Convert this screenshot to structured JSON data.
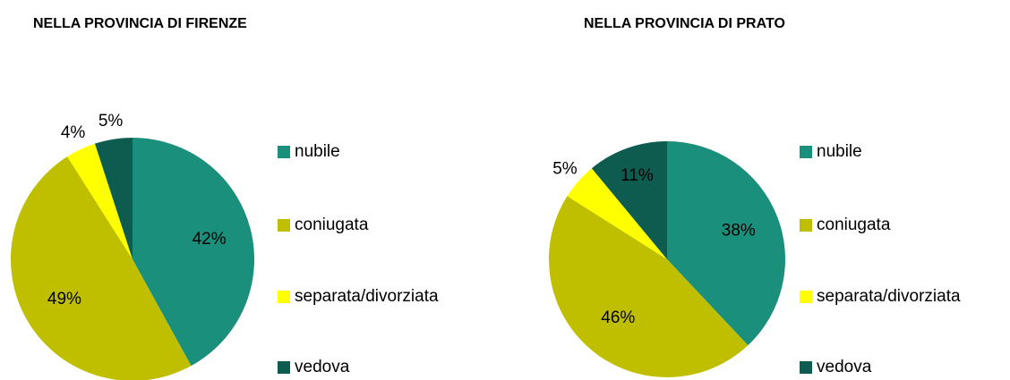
{
  "chart_data": [
    {
      "type": "pie",
      "title": "NELLA PROVINCIA DI FIRENZE",
      "categories": [
        "nubile",
        "coniugata",
        "separata/divorziata",
        "vedova"
      ],
      "values": [
        42,
        49,
        4,
        5
      ],
      "value_labels": [
        "42%",
        "49%",
        "4%",
        "5%"
      ],
      "colors": [
        "#1a8f7c",
        "#bfbf00",
        "#ffff00",
        "#0e5c50"
      ],
      "legend": "right"
    },
    {
      "type": "pie",
      "title": "NELLA PROVINCIA DI PRATO",
      "categories": [
        "nubile",
        "coniugata",
        "separata/divorziata",
        "vedova"
      ],
      "values": [
        38,
        46,
        5,
        11
      ],
      "value_labels": [
        "38%",
        "46%",
        "5%",
        "11%"
      ],
      "colors": [
        "#1a8f7c",
        "#bfbf00",
        "#ffff00",
        "#0e5c50"
      ],
      "legend": "right"
    }
  ]
}
